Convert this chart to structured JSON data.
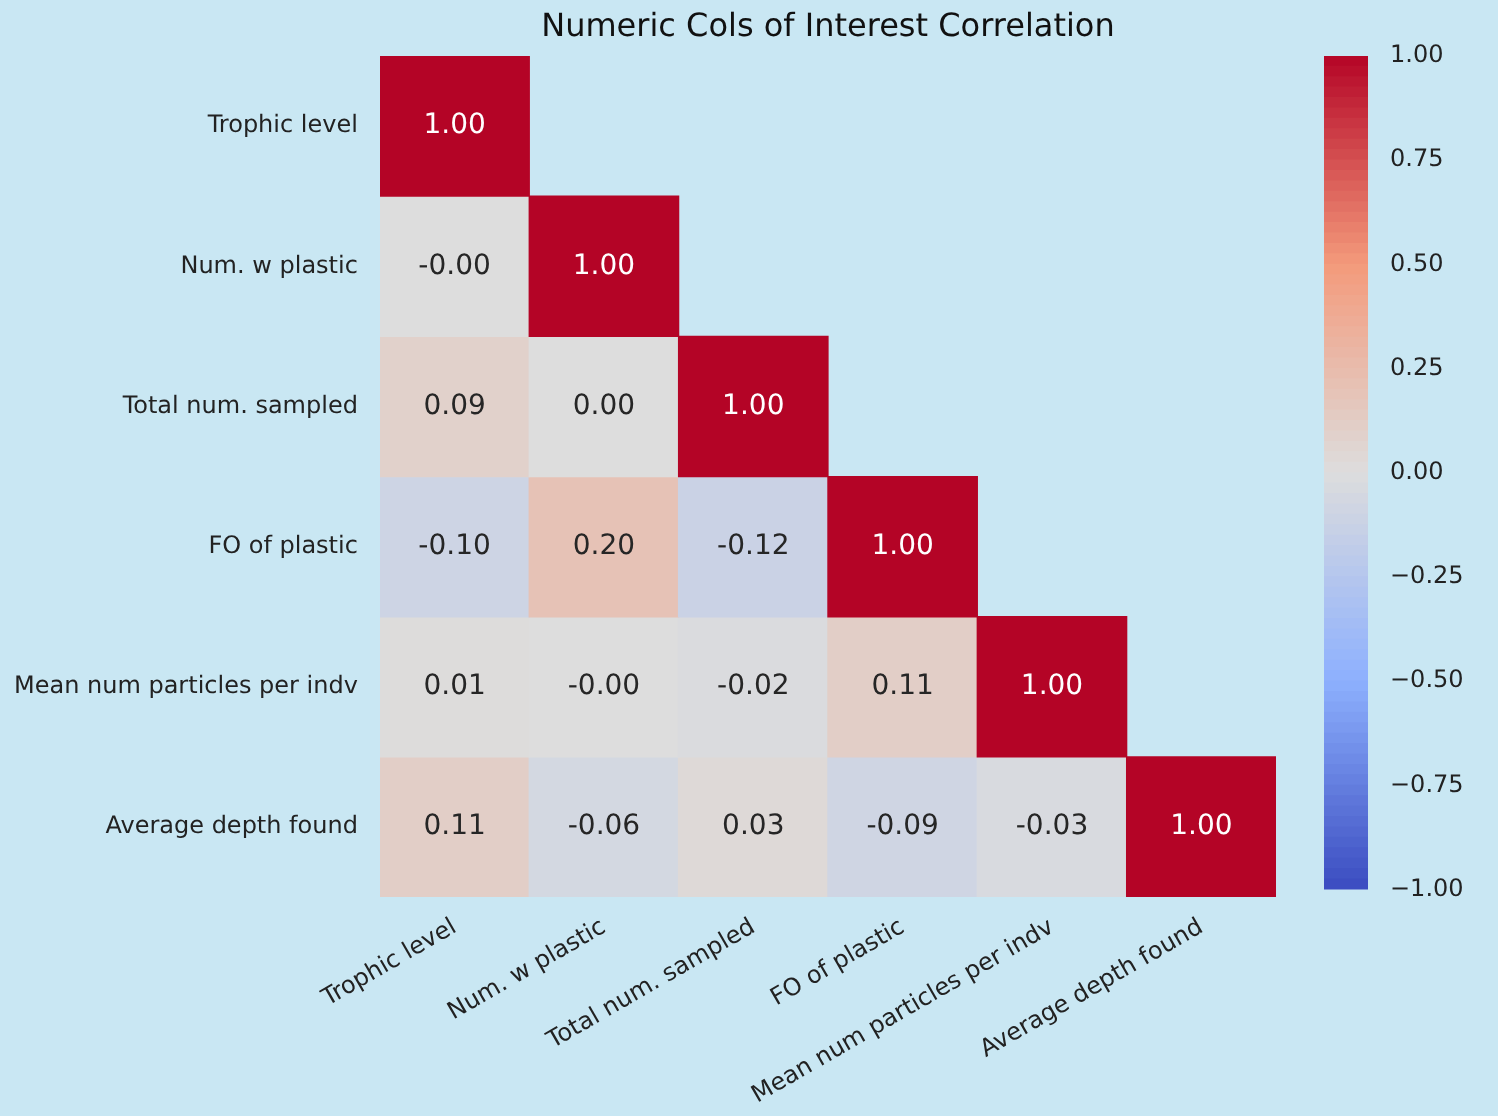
{
  "chart_data": {
    "type": "heatmap",
    "title": "Numeric Cols of Interest Correlation",
    "categories": [
      "Trophic level",
      "Num. w plastic",
      "Total num. sampled",
      "FO of plastic",
      "Mean num particles per indv",
      "Average depth found"
    ],
    "y_categories": [
      "Trophic level",
      "Num. w plastic",
      "Total num. sampled",
      "FO of plastic",
      "Mean num particles per indv",
      "Average depth found"
    ],
    "cells": [
      [
        1.0,
        null,
        null,
        null,
        null,
        null
      ],
      [
        0,
        1.0,
        null,
        null,
        null,
        null
      ],
      [
        0.09,
        0,
        1.0,
        null,
        null,
        null
      ],
      [
        -0.1,
        0.2,
        -0.12,
        1.0,
        null,
        null
      ],
      [
        0.01,
        0,
        -0.02,
        0.11,
        1.0,
        null
      ],
      [
        0.11,
        -0.06,
        0.03,
        -0.09,
        -0.03,
        1.0
      ]
    ],
    "cell_labels": [
      [
        "1.00",
        null,
        null,
        null,
        null,
        null
      ],
      [
        "-0.00",
        "1.00",
        null,
        null,
        null,
        null
      ],
      [
        "0.09",
        "0.00",
        "1.00",
        null,
        null,
        null
      ],
      [
        "-0.10",
        "0.20",
        "-0.12",
        "1.00",
        null,
        null
      ],
      [
        "0.01",
        "-0.00",
        "-0.02",
        "0.11",
        "1.00",
        null
      ],
      [
        "0.11",
        "-0.06",
        "0.03",
        "-0.09",
        "-0.03",
        "1.00"
      ]
    ],
    "clim": [
      -1,
      1
    ],
    "cticks": [
      {
        "value": -1,
        "label": "−1.00"
      },
      {
        "value": -0.75,
        "label": "−0.75"
      },
      {
        "value": -0.5,
        "label": "−0.50"
      },
      {
        "value": -0.25,
        "label": "−0.25"
      },
      {
        "value": 0,
        "label": "0.00"
      },
      {
        "value": 0.25,
        "label": "0.25"
      },
      {
        "value": 0.5,
        "label": "0.50"
      },
      {
        "value": 0.75,
        "label": "0.75"
      },
      {
        "value": 1,
        "label": "1.00"
      }
    ]
  }
}
